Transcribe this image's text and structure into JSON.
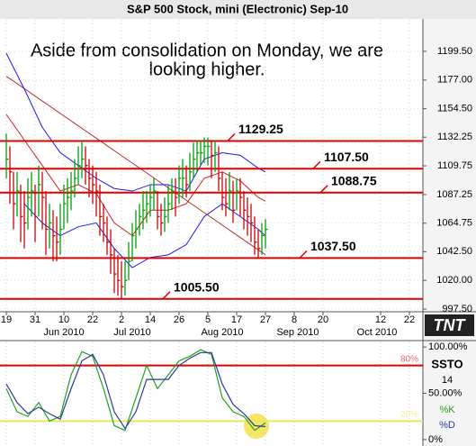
{
  "chart_data": {
    "type": "ohlc",
    "title": "S&P 500 Stock, mini (Electronic) Sep-10",
    "annotation": [
      "Aside from consolidation on Monday, we are",
      "looking higher."
    ],
    "logo": "TNT",
    "xlim": [
      -1.75,
      115.75
    ],
    "xticks": [
      {
        "value": 0,
        "label": "19"
      },
      {
        "value": 8,
        "label": "31"
      },
      {
        "value": 16,
        "label": "10"
      },
      {
        "value": 24,
        "label": "22"
      },
      {
        "value": 32,
        "label": "2"
      },
      {
        "value": 40,
        "label": "14"
      },
      {
        "value": 48,
        "label": "26"
      },
      {
        "value": 56,
        "label": "5"
      },
      {
        "value": 64,
        "label": "17"
      },
      {
        "value": 72,
        "label": "27"
      },
      {
        "value": 80,
        "label": "8"
      },
      {
        "value": 88,
        "label": "20"
      },
      {
        "value": 104,
        "label": "12"
      },
      {
        "value": 112,
        "label": "22"
      }
    ],
    "months": [
      {
        "value": 16,
        "label": "Jun 2010"
      },
      {
        "value": 35,
        "label": "Jul 2010"
      },
      {
        "value": 60,
        "label": "Aug 2010"
      },
      {
        "value": 81,
        "label": "Sep 2010"
      },
      {
        "value": 103,
        "label": "Oct 2010"
      }
    ],
    "ylim": [
      995.4,
      1224.2
    ],
    "yticks": [
      {
        "value": 1199.5,
        "label": "1199.50"
      },
      {
        "value": 1177,
        "label": "1177.00"
      },
      {
        "value": 1154.5,
        "label": "1154.50"
      },
      1132.25,
      1109.75,
      1087.25,
      1064.75,
      {
        "value": 1042.5,
        "label": "1042.50"
      },
      {
        "value": 1020,
        "label": "1020.00"
      },
      {
        "value": 997.5,
        "label": "997.50"
      }
    ],
    "grid": true,
    "high": [
      1135,
      1125,
      1105,
      1105,
      1095,
      1090,
      1100,
      1105,
      1095,
      1110,
      1105,
      1090,
      1080,
      1075,
      1070,
      1080,
      1095,
      1100,
      1105,
      1115,
      1125,
      1130,
      1125,
      1115,
      1110,
      1105,
      1095,
      1080,
      1070,
      1060,
      1045,
      1040,
      1035,
      1035,
      1050,
      1065,
      1075,
      1080,
      1090,
      1090,
      1095,
      1100,
      1090,
      1080,
      1085,
      1095,
      1100,
      1100,
      1110,
      1115,
      1110,
      1120,
      1128,
      1130,
      1130,
      1132,
      1132,
      1130,
      1130,
      1125,
      1105,
      1100,
      1105,
      1098,
      1100,
      1100,
      1090,
      1085,
      1080,
      1070,
      1060,
      1065,
      1068
    ],
    "low": [
      1100,
      1080,
      1060,
      1070,
      1050,
      1045,
      1060,
      1070,
      1050,
      1070,
      1060,
      1040,
      1045,
      1035,
      1035,
      1040,
      1060,
      1065,
      1075,
      1085,
      1095,
      1100,
      1095,
      1085,
      1080,
      1070,
      1055,
      1050,
      1040,
      1025,
      1010,
      1008,
      1005,
      1008,
      1020,
      1035,
      1045,
      1055,
      1060,
      1065,
      1070,
      1075,
      1060,
      1055,
      1058,
      1065,
      1075,
      1070,
      1080,
      1085,
      1085,
      1090,
      1100,
      1105,
      1110,
      1112,
      1110,
      1100,
      1105,
      1090,
      1075,
      1070,
      1075,
      1065,
      1075,
      1070,
      1060,
      1055,
      1050,
      1040,
      1038,
      1040,
      1045
    ],
    "close": [
      1115,
      1105,
      1080,
      1090,
      1070,
      1065,
      1085,
      1090,
      1070,
      1095,
      1085,
      1060,
      1065,
      1055,
      1050,
      1060,
      1080,
      1085,
      1090,
      1100,
      1110,
      1115,
      1110,
      1100,
      1095,
      1090,
      1070,
      1065,
      1050,
      1040,
      1025,
      1020,
      1015,
      1020,
      1035,
      1055,
      1060,
      1070,
      1075,
      1080,
      1085,
      1090,
      1070,
      1065,
      1070,
      1080,
      1090,
      1085,
      1100,
      1100,
      1095,
      1105,
      1115,
      1120,
      1120,
      1125,
      1125,
      1118,
      1120,
      1100,
      1085,
      1080,
      1090,
      1075,
      1090,
      1085,
      1075,
      1070,
      1065,
      1050,
      1045,
      1055,
      1060
    ],
    "up_color": "#00a000",
    "down_color": "#d00000",
    "overlays": [
      {
        "color": "#1a1aee",
        "x": [
          0,
          5,
          10,
          15,
          20,
          25,
          30,
          35,
          40,
          45,
          50,
          55,
          60,
          65,
          70,
          72
        ],
        "values": [
          1198,
          1170,
          1140,
          1120,
          1110,
          1100,
          1092,
          1090,
          1095,
          1095,
          1090,
          1115,
          1120,
          1118,
          1108,
          1105
        ]
      },
      {
        "color": "#d02020",
        "x": [
          0,
          5,
          10,
          15,
          20,
          25,
          30,
          35,
          40,
          45,
          50,
          55,
          60,
          65,
          70,
          72
        ],
        "values": [
          1150,
          1130,
          1110,
          1090,
          1095,
          1088,
          1065,
          1055,
          1075,
          1075,
          1080,
          1100,
          1105,
          1098,
          1085,
          1082
        ]
      },
      {
        "color": "#1a1aee",
        "x": [
          5,
          10,
          15,
          20,
          25,
          30,
          35,
          40,
          45,
          50,
          55,
          60,
          65,
          70,
          72
        ],
        "values": [
          1080,
          1065,
          1055,
          1062,
          1065,
          1045,
          1030,
          1038,
          1040,
          1048,
          1070,
          1080,
          1070,
          1060,
          1055
        ]
      }
    ],
    "trendline": {
      "color": "#b03030",
      "x": [
        0,
        72
      ],
      "values": [
        1180,
        1040
      ]
    },
    "level_color": "#e00000",
    "levels": [
      1129.25,
      {
        "value": 1107.5,
        "label": "1107.50"
      },
      1088.75,
      {
        "value": 1037.5,
        "label": "1037.50"
      },
      {
        "value": 1005.5,
        "label": "1005.50"
      }
    ],
    "oscillator": {
      "type": "line",
      "name": "SSTO",
      "period": 14,
      "ylim": [
        -5,
        105
      ],
      "yticks": [
        {
          "value": 100,
          "label": "100.00%"
        },
        {
          "value": 50,
          "label": "50.00%"
        },
        {
          "value": 0,
          "label": "0%"
        }
      ],
      "levels": [
        {
          "value": 80,
          "label": "80%",
          "color": "#e00000"
        },
        {
          "value": 20,
          "label": "20%",
          "color": "#e8e860"
        }
      ],
      "x": [
        0,
        3,
        6,
        9,
        12,
        15,
        18,
        21,
        24,
        27,
        30,
        33,
        36,
        39,
        42,
        45,
        48,
        51,
        54,
        57,
        60,
        63,
        66,
        69,
        72
      ],
      "series": [
        {
          "name": "%K",
          "color": "#22a022",
          "values": [
            55,
            30,
            25,
            40,
            20,
            25,
            70,
            95,
            90,
            55,
            15,
            10,
            45,
            80,
            55,
            70,
            85,
            90,
            97,
            92,
            45,
            30,
            25,
            10,
            18
          ]
        },
        {
          "name": "%D",
          "color": "#2b3a9c",
          "values": [
            60,
            40,
            28,
            35,
            28,
            22,
            55,
            85,
            92,
            70,
            30,
            12,
            30,
            65,
            65,
            65,
            80,
            88,
            94,
            94,
            60,
            38,
            28,
            15,
            14
          ]
        }
      ]
    }
  }
}
